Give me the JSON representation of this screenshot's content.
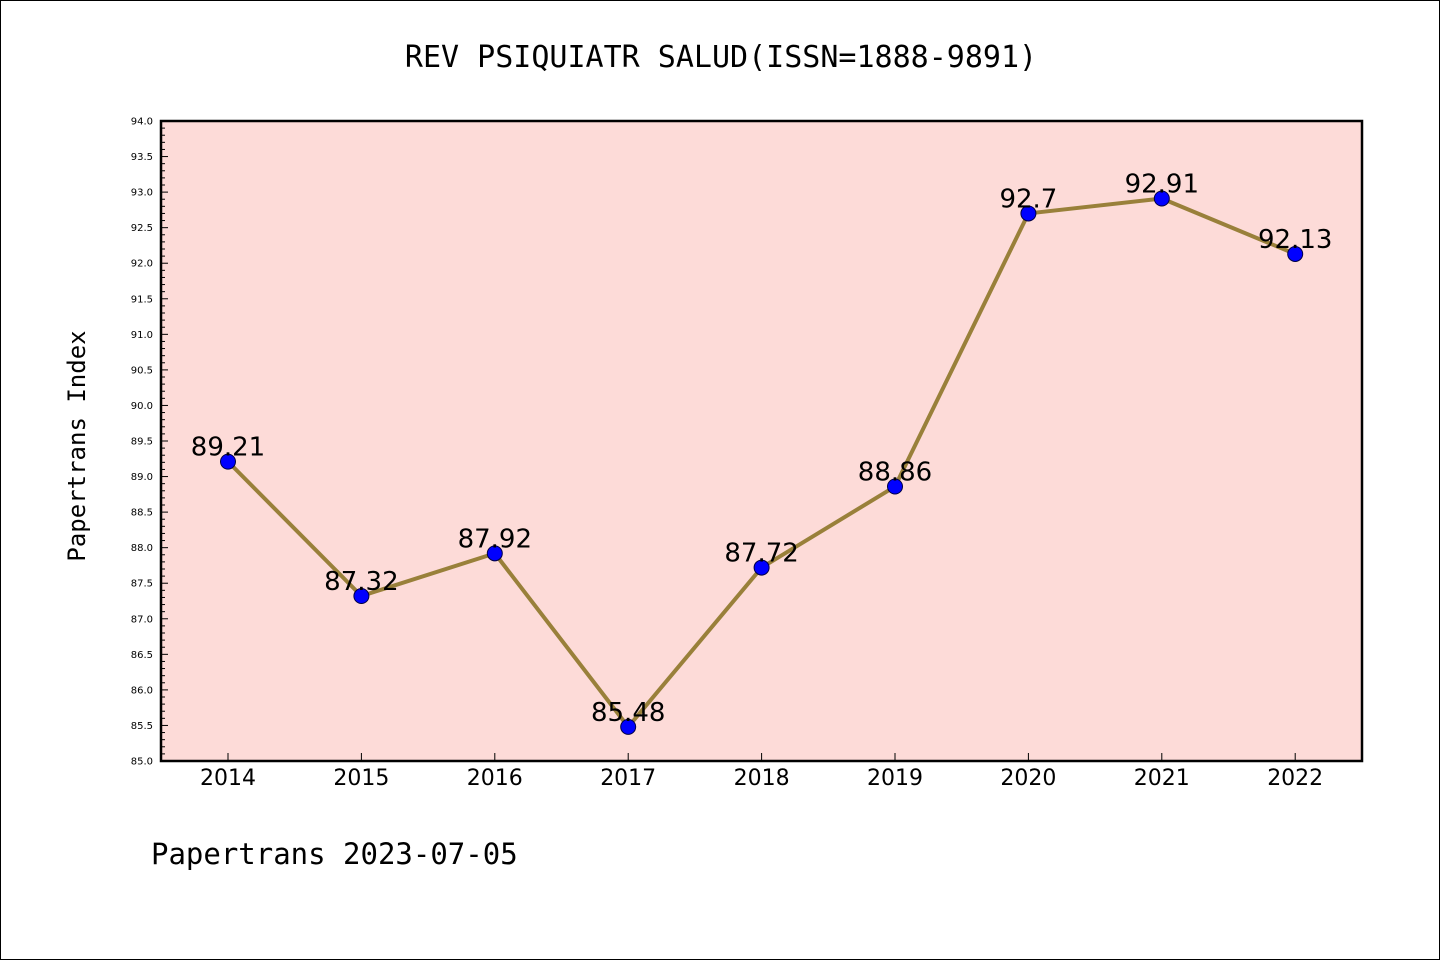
{
  "chart_data": {
    "type": "line",
    "title": "REV PSIQUIATR SALUD(ISSN=1888-9891)",
    "ylabel": "Papertrans Index",
    "xlabel": "",
    "categories": [
      "2014",
      "2015",
      "2016",
      "2017",
      "2018",
      "2019",
      "2020",
      "2021",
      "2022"
    ],
    "series": [
      {
        "values": [
          89.21,
          87.32,
          87.92,
          85.48,
          87.72,
          88.86,
          92.7,
          92.91,
          92.13
        ],
        "labels": [
          "89.21",
          "87.32",
          "87.92",
          "85.48",
          "87.72",
          "88.86",
          "92.7",
          "92.91",
          "92.13"
        ]
      }
    ],
    "ylim": [
      85.0,
      94.0
    ],
    "yticks": [
      "85.0",
      "85.5",
      "86.0",
      "86.5",
      "87.0",
      "87.5",
      "88.0",
      "88.5",
      "89.0",
      "89.5",
      "90.0",
      "90.5",
      "91.0",
      "91.5",
      "92.0",
      "92.5",
      "93.0",
      "93.5",
      "94.0"
    ],
    "grid": false,
    "legend": "none",
    "colors": {
      "plot_background": "#fddbd8",
      "line": "#99803a",
      "marker": "#0000ff"
    }
  },
  "footer": "Papertrans 2023-07-05"
}
